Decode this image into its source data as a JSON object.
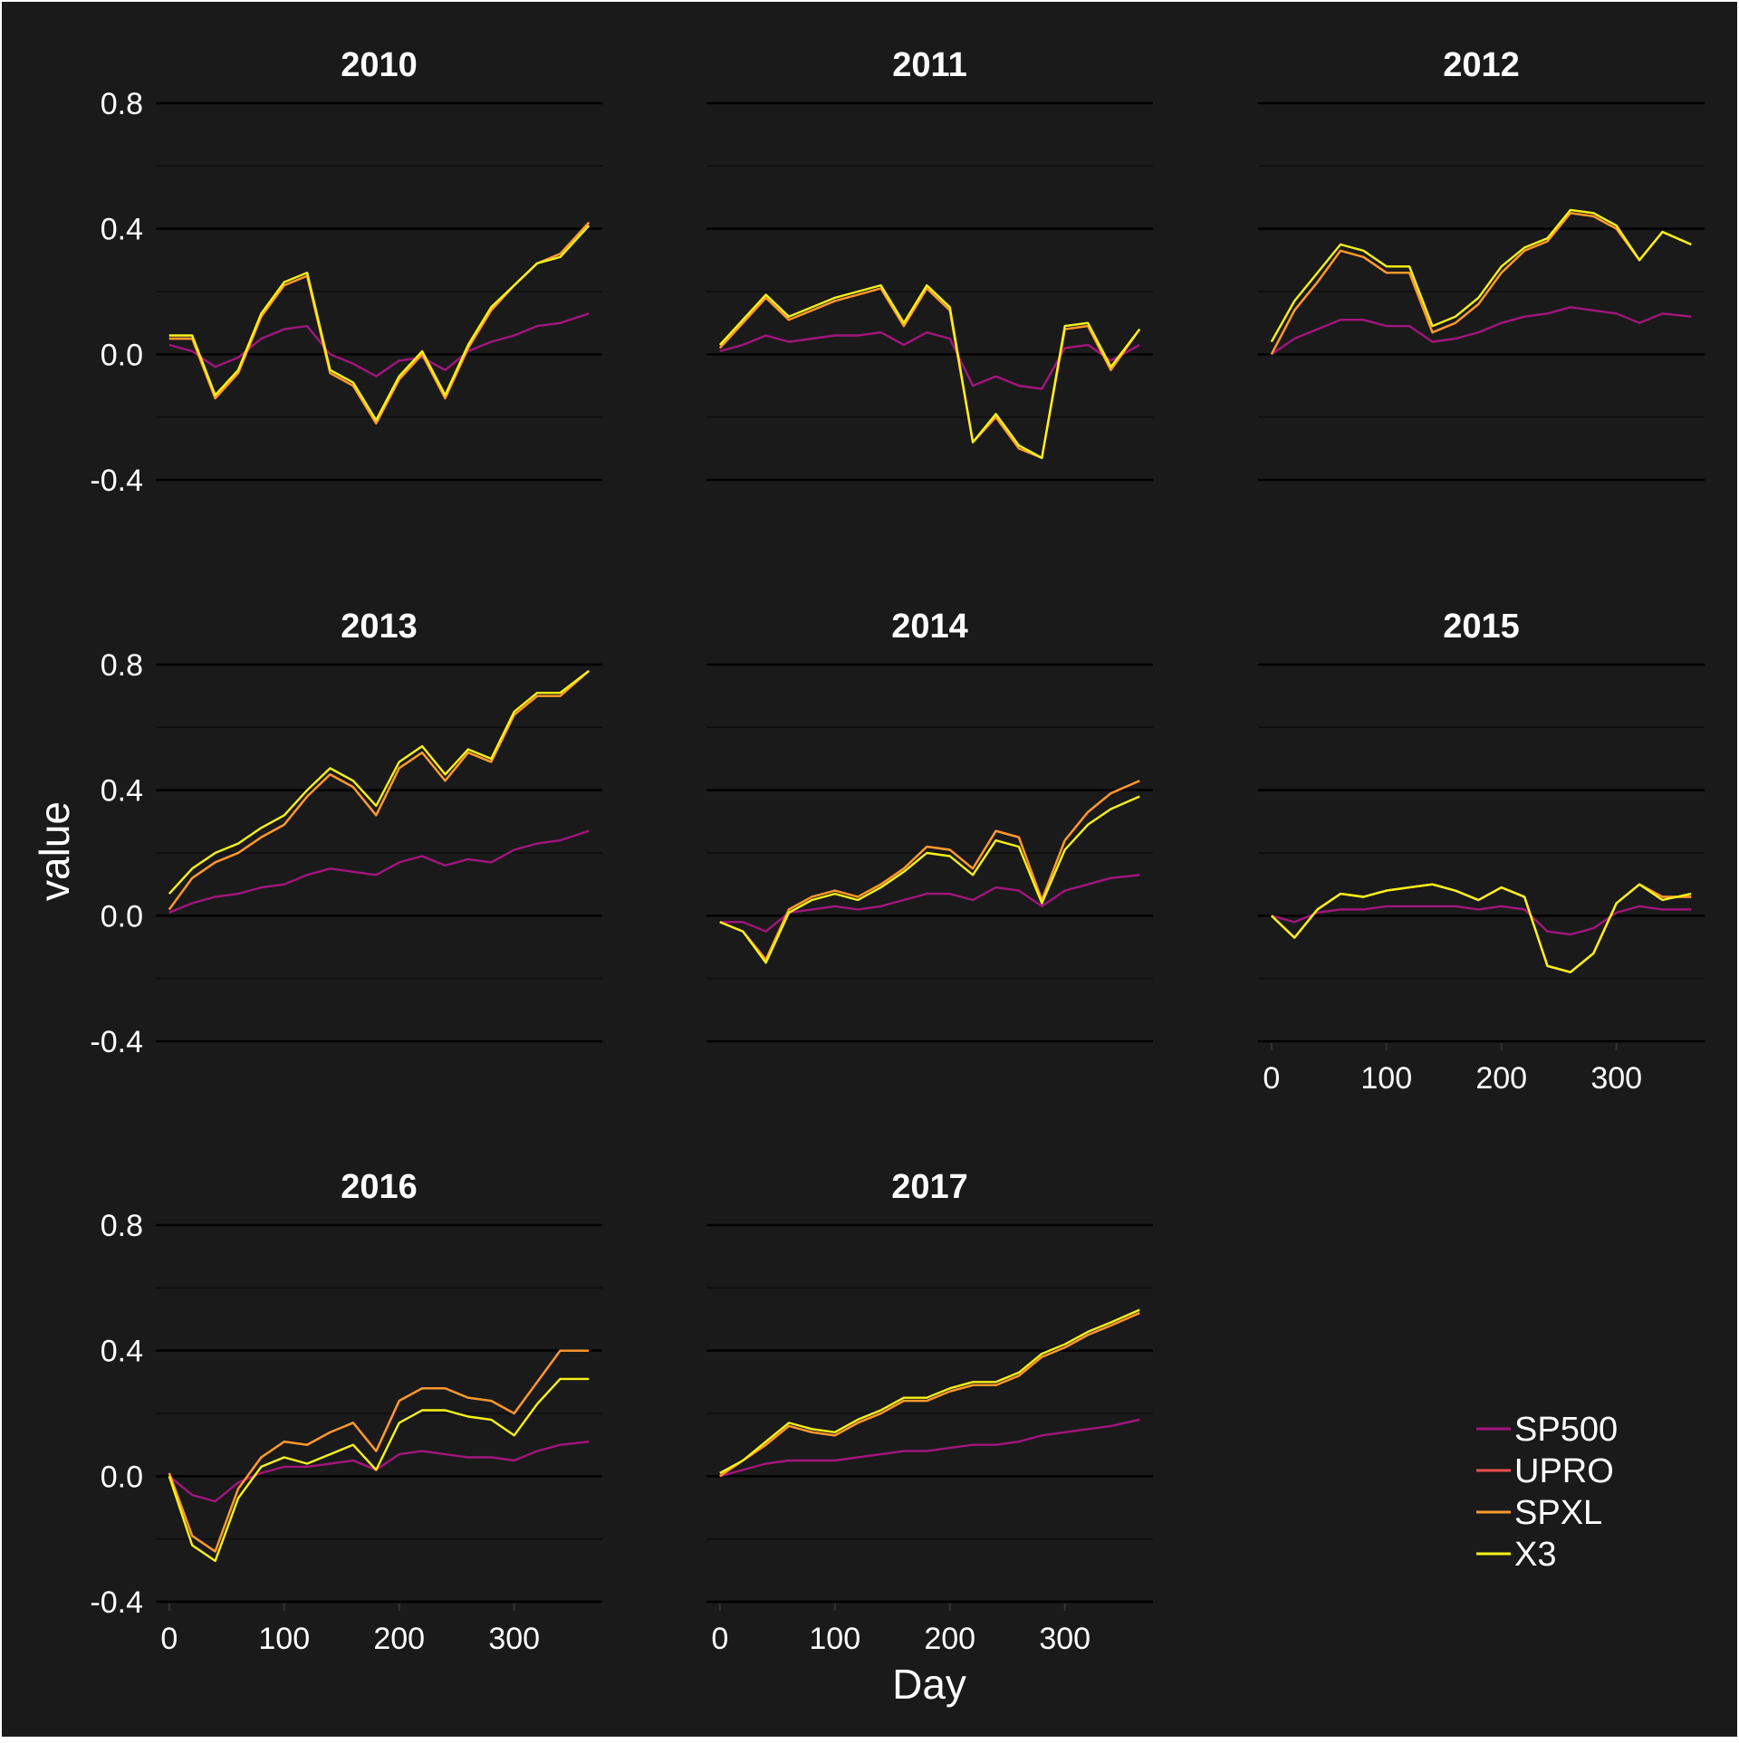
{
  "theme": {
    "background": "#1a1a1a",
    "frame": "#ffffff",
    "text": "#ffffff",
    "grid_major": "#000000",
    "grid_minor": "#0d0d0d"
  },
  "chart_data": {
    "type": "line",
    "layout": "facet-grid-3x3",
    "xlabel": "Day",
    "ylabel": "value",
    "xlim": [
      0,
      365
    ],
    "ylim": [
      -0.4,
      0.8
    ],
    "x_ticks": [
      0,
      100,
      200,
      300
    ],
    "y_ticks": [
      -0.4,
      0.0,
      0.4,
      0.8
    ],
    "y_tick_labels": [
      "-0.4",
      "0.0",
      "0.4",
      "0.8"
    ],
    "legend": {
      "position": "bottom-right",
      "entries": [
        {
          "name": "SP500",
          "color": "#a3157d"
        },
        {
          "name": "UPRO",
          "color": "#e8504c"
        },
        {
          "name": "SPXL",
          "color": "#fd9a2a"
        },
        {
          "name": "X3",
          "color": "#f7f316"
        }
      ]
    },
    "facets": [
      {
        "title": "2010",
        "x": [
          0,
          20,
          40,
          60,
          80,
          100,
          120,
          140,
          160,
          180,
          200,
          220,
          240,
          260,
          280,
          300,
          320,
          340,
          365
        ],
        "series": [
          {
            "name": "SP500",
            "values": [
              0.03,
              0.01,
              -0.04,
              -0.01,
              0.05,
              0.08,
              0.09,
              0.0,
              -0.03,
              -0.07,
              -0.02,
              -0.01,
              -0.05,
              0.01,
              0.04,
              0.06,
              0.09,
              0.1,
              0.13
            ]
          },
          {
            "name": "UPRO",
            "values": [
              0.05,
              0.05,
              -0.14,
              -0.06,
              0.12,
              0.22,
              0.25,
              -0.06,
              -0.1,
              -0.22,
              -0.08,
              0.0,
              -0.14,
              0.02,
              0.14,
              0.22,
              0.29,
              0.32,
              0.42
            ]
          },
          {
            "name": "SPXL",
            "values": [
              0.05,
              0.05,
              -0.14,
              -0.06,
              0.12,
              0.22,
              0.25,
              -0.06,
              -0.1,
              -0.22,
              -0.08,
              0.0,
              -0.14,
              0.02,
              0.14,
              0.22,
              0.29,
              0.32,
              0.42
            ]
          },
          {
            "name": "X3",
            "values": [
              0.06,
              0.06,
              -0.13,
              -0.05,
              0.13,
              0.23,
              0.26,
              -0.05,
              -0.09,
              -0.21,
              -0.07,
              0.01,
              -0.13,
              0.03,
              0.15,
              0.22,
              0.29,
              0.31,
              0.41
            ]
          }
        ]
      },
      {
        "title": "2011",
        "x": [
          0,
          20,
          40,
          60,
          80,
          100,
          120,
          140,
          160,
          180,
          200,
          220,
          240,
          260,
          280,
          300,
          320,
          340,
          365
        ],
        "series": [
          {
            "name": "SP500",
            "values": [
              0.01,
              0.03,
              0.06,
              0.04,
              0.05,
              0.06,
              0.06,
              0.07,
              0.03,
              0.07,
              0.05,
              -0.1,
              -0.07,
              -0.1,
              -0.11,
              0.02,
              0.03,
              -0.02,
              0.03
            ]
          },
          {
            "name": "UPRO",
            "values": [
              0.02,
              0.1,
              0.18,
              0.11,
              0.14,
              0.17,
              0.19,
              0.21,
              0.09,
              0.21,
              0.14,
              -0.28,
              -0.2,
              -0.3,
              -0.33,
              0.08,
              0.09,
              -0.05,
              0.08
            ]
          },
          {
            "name": "SPXL",
            "values": [
              0.02,
              0.1,
              0.18,
              0.11,
              0.14,
              0.17,
              0.19,
              0.21,
              0.09,
              0.21,
              0.14,
              -0.28,
              -0.2,
              -0.3,
              -0.33,
              0.08,
              0.09,
              -0.05,
              0.08
            ]
          },
          {
            "name": "X3",
            "values": [
              0.03,
              0.11,
              0.19,
              0.12,
              0.15,
              0.18,
              0.2,
              0.22,
              0.1,
              0.22,
              0.15,
              -0.28,
              -0.19,
              -0.29,
              -0.33,
              0.09,
              0.1,
              -0.04,
              0.08
            ]
          }
        ]
      },
      {
        "title": "2012",
        "x": [
          0,
          20,
          40,
          60,
          80,
          100,
          120,
          140,
          160,
          180,
          200,
          220,
          240,
          260,
          280,
          300,
          320,
          340,
          365
        ],
        "series": [
          {
            "name": "SP500",
            "values": [
              0.0,
              0.05,
              0.08,
              0.11,
              0.11,
              0.09,
              0.09,
              0.04,
              0.05,
              0.07,
              0.1,
              0.12,
              0.13,
              0.15,
              0.14,
              0.13,
              0.1,
              0.13,
              0.12
            ]
          },
          {
            "name": "UPRO",
            "values": [
              0.0,
              0.14,
              0.23,
              0.33,
              0.31,
              0.26,
              0.26,
              0.07,
              0.1,
              0.16,
              0.26,
              0.33,
              0.36,
              0.45,
              0.44,
              0.4,
              0.3,
              0.39,
              0.35
            ]
          },
          {
            "name": "SPXL",
            "values": [
              0.0,
              0.14,
              0.23,
              0.33,
              0.31,
              0.26,
              0.26,
              0.07,
              0.1,
              0.16,
              0.26,
              0.33,
              0.36,
              0.45,
              0.44,
              0.4,
              0.3,
              0.39,
              0.35
            ]
          },
          {
            "name": "X3",
            "values": [
              0.04,
              0.17,
              0.26,
              0.35,
              0.33,
              0.28,
              0.28,
              0.09,
              0.12,
              0.18,
              0.28,
              0.34,
              0.37,
              0.46,
              0.45,
              0.41,
              0.3,
              0.39,
              0.35
            ]
          }
        ]
      },
      {
        "title": "2013",
        "x": [
          0,
          20,
          40,
          60,
          80,
          100,
          120,
          140,
          160,
          180,
          200,
          220,
          240,
          260,
          280,
          300,
          320,
          340,
          365
        ],
        "series": [
          {
            "name": "SP500",
            "values": [
              0.01,
              0.04,
              0.06,
              0.07,
              0.09,
              0.1,
              0.13,
              0.15,
              0.14,
              0.13,
              0.17,
              0.19,
              0.16,
              0.18,
              0.17,
              0.21,
              0.23,
              0.24,
              0.27
            ]
          },
          {
            "name": "UPRO",
            "values": [
              0.02,
              0.12,
              0.17,
              0.2,
              0.25,
              0.29,
              0.38,
              0.45,
              0.41,
              0.32,
              0.47,
              0.52,
              0.43,
              0.52,
              0.49,
              0.64,
              0.7,
              0.7,
              0.78
            ]
          },
          {
            "name": "SPXL",
            "values": [
              0.02,
              0.12,
              0.17,
              0.2,
              0.25,
              0.29,
              0.38,
              0.45,
              0.41,
              0.32,
              0.47,
              0.52,
              0.43,
              0.52,
              0.49,
              0.64,
              0.7,
              0.7,
              0.78
            ]
          },
          {
            "name": "X3",
            "values": [
              0.07,
              0.15,
              0.2,
              0.23,
              0.28,
              0.32,
              0.4,
              0.47,
              0.43,
              0.35,
              0.49,
              0.54,
              0.45,
              0.53,
              0.5,
              0.65,
              0.71,
              0.71,
              0.78
            ]
          }
        ]
      },
      {
        "title": "2014",
        "x": [
          0,
          20,
          40,
          60,
          80,
          100,
          120,
          140,
          160,
          180,
          200,
          220,
          240,
          260,
          280,
          300,
          320,
          340,
          365
        ],
        "series": [
          {
            "name": "SP500",
            "values": [
              -0.02,
              -0.02,
              -0.05,
              0.01,
              0.02,
              0.03,
              0.02,
              0.03,
              0.05,
              0.07,
              0.07,
              0.05,
              0.09,
              0.08,
              0.03,
              0.08,
              0.1,
              0.12,
              0.13
            ]
          },
          {
            "name": "UPRO",
            "values": [
              -0.02,
              -0.05,
              -0.14,
              0.02,
              0.06,
              0.08,
              0.06,
              0.1,
              0.15,
              0.22,
              0.21,
              0.15,
              0.27,
              0.25,
              0.05,
              0.24,
              0.33,
              0.39,
              0.43
            ]
          },
          {
            "name": "SPXL",
            "values": [
              -0.02,
              -0.05,
              -0.14,
              0.02,
              0.06,
              0.08,
              0.06,
              0.1,
              0.15,
              0.22,
              0.21,
              0.15,
              0.27,
              0.25,
              0.05,
              0.24,
              0.33,
              0.39,
              0.43
            ]
          },
          {
            "name": "X3",
            "values": [
              -0.02,
              -0.05,
              -0.15,
              0.01,
              0.05,
              0.07,
              0.05,
              0.09,
              0.14,
              0.2,
              0.19,
              0.13,
              0.24,
              0.22,
              0.04,
              0.21,
              0.29,
              0.34,
              0.38
            ]
          }
        ]
      },
      {
        "title": "2015",
        "x": [
          0,
          20,
          40,
          60,
          80,
          100,
          120,
          140,
          160,
          180,
          200,
          220,
          240,
          260,
          280,
          300,
          320,
          340,
          365
        ],
        "series": [
          {
            "name": "SP500",
            "values": [
              0.0,
              -0.02,
              0.01,
              0.02,
              0.02,
              0.03,
              0.03,
              0.03,
              0.03,
              0.02,
              0.03,
              0.02,
              -0.05,
              -0.06,
              -0.04,
              0.01,
              0.03,
              0.02,
              0.02
            ]
          },
          {
            "name": "UPRO",
            "values": [
              0.0,
              -0.07,
              0.02,
              0.07,
              0.06,
              0.08,
              0.09,
              0.1,
              0.08,
              0.05,
              0.09,
              0.06,
              -0.16,
              -0.18,
              -0.12,
              0.04,
              0.1,
              0.06,
              0.06
            ]
          },
          {
            "name": "SPXL",
            "values": [
              0.0,
              -0.07,
              0.02,
              0.07,
              0.06,
              0.08,
              0.09,
              0.1,
              0.08,
              0.05,
              0.09,
              0.06,
              -0.16,
              -0.18,
              -0.12,
              0.04,
              0.1,
              0.06,
              0.06
            ]
          },
          {
            "name": "X3",
            "values": [
              0.0,
              -0.07,
              0.02,
              0.07,
              0.06,
              0.08,
              0.09,
              0.1,
              0.08,
              0.05,
              0.09,
              0.06,
              -0.16,
              -0.18,
              -0.12,
              0.04,
              0.1,
              0.05,
              0.07
            ]
          }
        ]
      },
      {
        "title": "2016",
        "x": [
          0,
          20,
          40,
          60,
          80,
          100,
          120,
          140,
          160,
          180,
          200,
          220,
          240,
          260,
          280,
          300,
          320,
          340,
          365
        ],
        "series": [
          {
            "name": "SP500",
            "values": [
              0.0,
              -0.06,
              -0.08,
              -0.02,
              0.01,
              0.03,
              0.03,
              0.04,
              0.05,
              0.02,
              0.07,
              0.08,
              0.07,
              0.06,
              0.06,
              0.05,
              0.08,
              0.1,
              0.11
            ]
          },
          {
            "name": "UPRO",
            "values": [
              0.01,
              -0.19,
              -0.24,
              -0.04,
              0.06,
              0.11,
              0.1,
              0.14,
              0.17,
              0.08,
              0.24,
              0.28,
              0.28,
              0.25,
              0.24,
              0.2,
              0.3,
              0.4,
              0.4
            ]
          },
          {
            "name": "SPXL",
            "values": [
              0.01,
              -0.19,
              -0.24,
              -0.04,
              0.06,
              0.11,
              0.1,
              0.14,
              0.17,
              0.08,
              0.24,
              0.28,
              0.28,
              0.25,
              0.24,
              0.2,
              0.3,
              0.4,
              0.4
            ]
          },
          {
            "name": "X3",
            "values": [
              0.0,
              -0.22,
              -0.27,
              -0.07,
              0.03,
              0.06,
              0.04,
              0.07,
              0.1,
              0.02,
              0.17,
              0.21,
              0.21,
              0.19,
              0.18,
              0.13,
              0.23,
              0.31,
              0.31
            ]
          }
        ]
      },
      {
        "title": "2017",
        "x": [
          0,
          20,
          40,
          60,
          80,
          100,
          120,
          140,
          160,
          180,
          200,
          220,
          240,
          260,
          280,
          300,
          320,
          340,
          365
        ],
        "series": [
          {
            "name": "SP500",
            "values": [
              0.0,
              0.02,
              0.04,
              0.05,
              0.05,
              0.05,
              0.06,
              0.07,
              0.08,
              0.08,
              0.09,
              0.1,
              0.1,
              0.11,
              0.13,
              0.14,
              0.15,
              0.16,
              0.18
            ]
          },
          {
            "name": "UPRO",
            "values": [
              0.0,
              0.05,
              0.1,
              0.16,
              0.14,
              0.13,
              0.17,
              0.2,
              0.24,
              0.24,
              0.27,
              0.29,
              0.29,
              0.32,
              0.38,
              0.41,
              0.45,
              0.48,
              0.52
            ]
          },
          {
            "name": "SPXL",
            "values": [
              0.0,
              0.05,
              0.1,
              0.16,
              0.14,
              0.13,
              0.17,
              0.2,
              0.24,
              0.24,
              0.27,
              0.29,
              0.29,
              0.32,
              0.38,
              0.41,
              0.45,
              0.48,
              0.52
            ]
          },
          {
            "name": "X3",
            "values": [
              0.01,
              0.05,
              0.11,
              0.17,
              0.15,
              0.14,
              0.18,
              0.21,
              0.25,
              0.25,
              0.28,
              0.3,
              0.3,
              0.33,
              0.39,
              0.42,
              0.46,
              0.49,
              0.53
            ]
          }
        ]
      }
    ]
  }
}
